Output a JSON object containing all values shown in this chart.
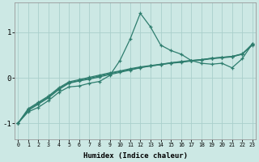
{
  "xlabel": "Humidex (Indice chaleur)",
  "x_values": [
    0,
    1,
    2,
    3,
    4,
    5,
    6,
    7,
    8,
    9,
    10,
    11,
    12,
    13,
    14,
    15,
    16,
    17,
    18,
    19,
    20,
    21,
    22,
    23
  ],
  "line1": [
    -1.0,
    -0.75,
    -0.65,
    -0.5,
    -0.32,
    -0.2,
    -0.18,
    -0.12,
    -0.08,
    0.05,
    0.38,
    0.85,
    1.42,
    1.12,
    0.72,
    0.6,
    0.52,
    0.38,
    0.32,
    0.3,
    0.32,
    0.22,
    0.42,
    0.75
  ],
  "line2": [
    -1.0,
    -0.72,
    -0.58,
    -0.44,
    -0.26,
    -0.12,
    -0.07,
    -0.03,
    0.02,
    0.07,
    0.12,
    0.17,
    0.22,
    0.26,
    0.29,
    0.33,
    0.36,
    0.38,
    0.4,
    0.43,
    0.45,
    0.47,
    0.52,
    0.75
  ],
  "line3": [
    -1.0,
    -0.7,
    -0.56,
    -0.42,
    -0.24,
    -0.11,
    -0.06,
    -0.01,
    0.04,
    0.09,
    0.14,
    0.18,
    0.23,
    0.26,
    0.29,
    0.32,
    0.34,
    0.37,
    0.39,
    0.42,
    0.44,
    0.46,
    0.52,
    0.73
  ],
  "line4": [
    -1.0,
    -0.68,
    -0.54,
    -0.4,
    -0.22,
    -0.09,
    -0.04,
    0.01,
    0.06,
    0.11,
    0.15,
    0.2,
    0.24,
    0.27,
    0.3,
    0.33,
    0.35,
    0.38,
    0.4,
    0.43,
    0.45,
    0.47,
    0.53,
    0.72
  ],
  "line_color": "#2e7d6e",
  "bg_color": "#cce8e4",
  "grid_color": "#aacfcc",
  "yticks": [
    -1,
    0,
    1
  ],
  "ylim": [
    -1.35,
    1.65
  ],
  "xlim": [
    -0.3,
    23.3
  ]
}
